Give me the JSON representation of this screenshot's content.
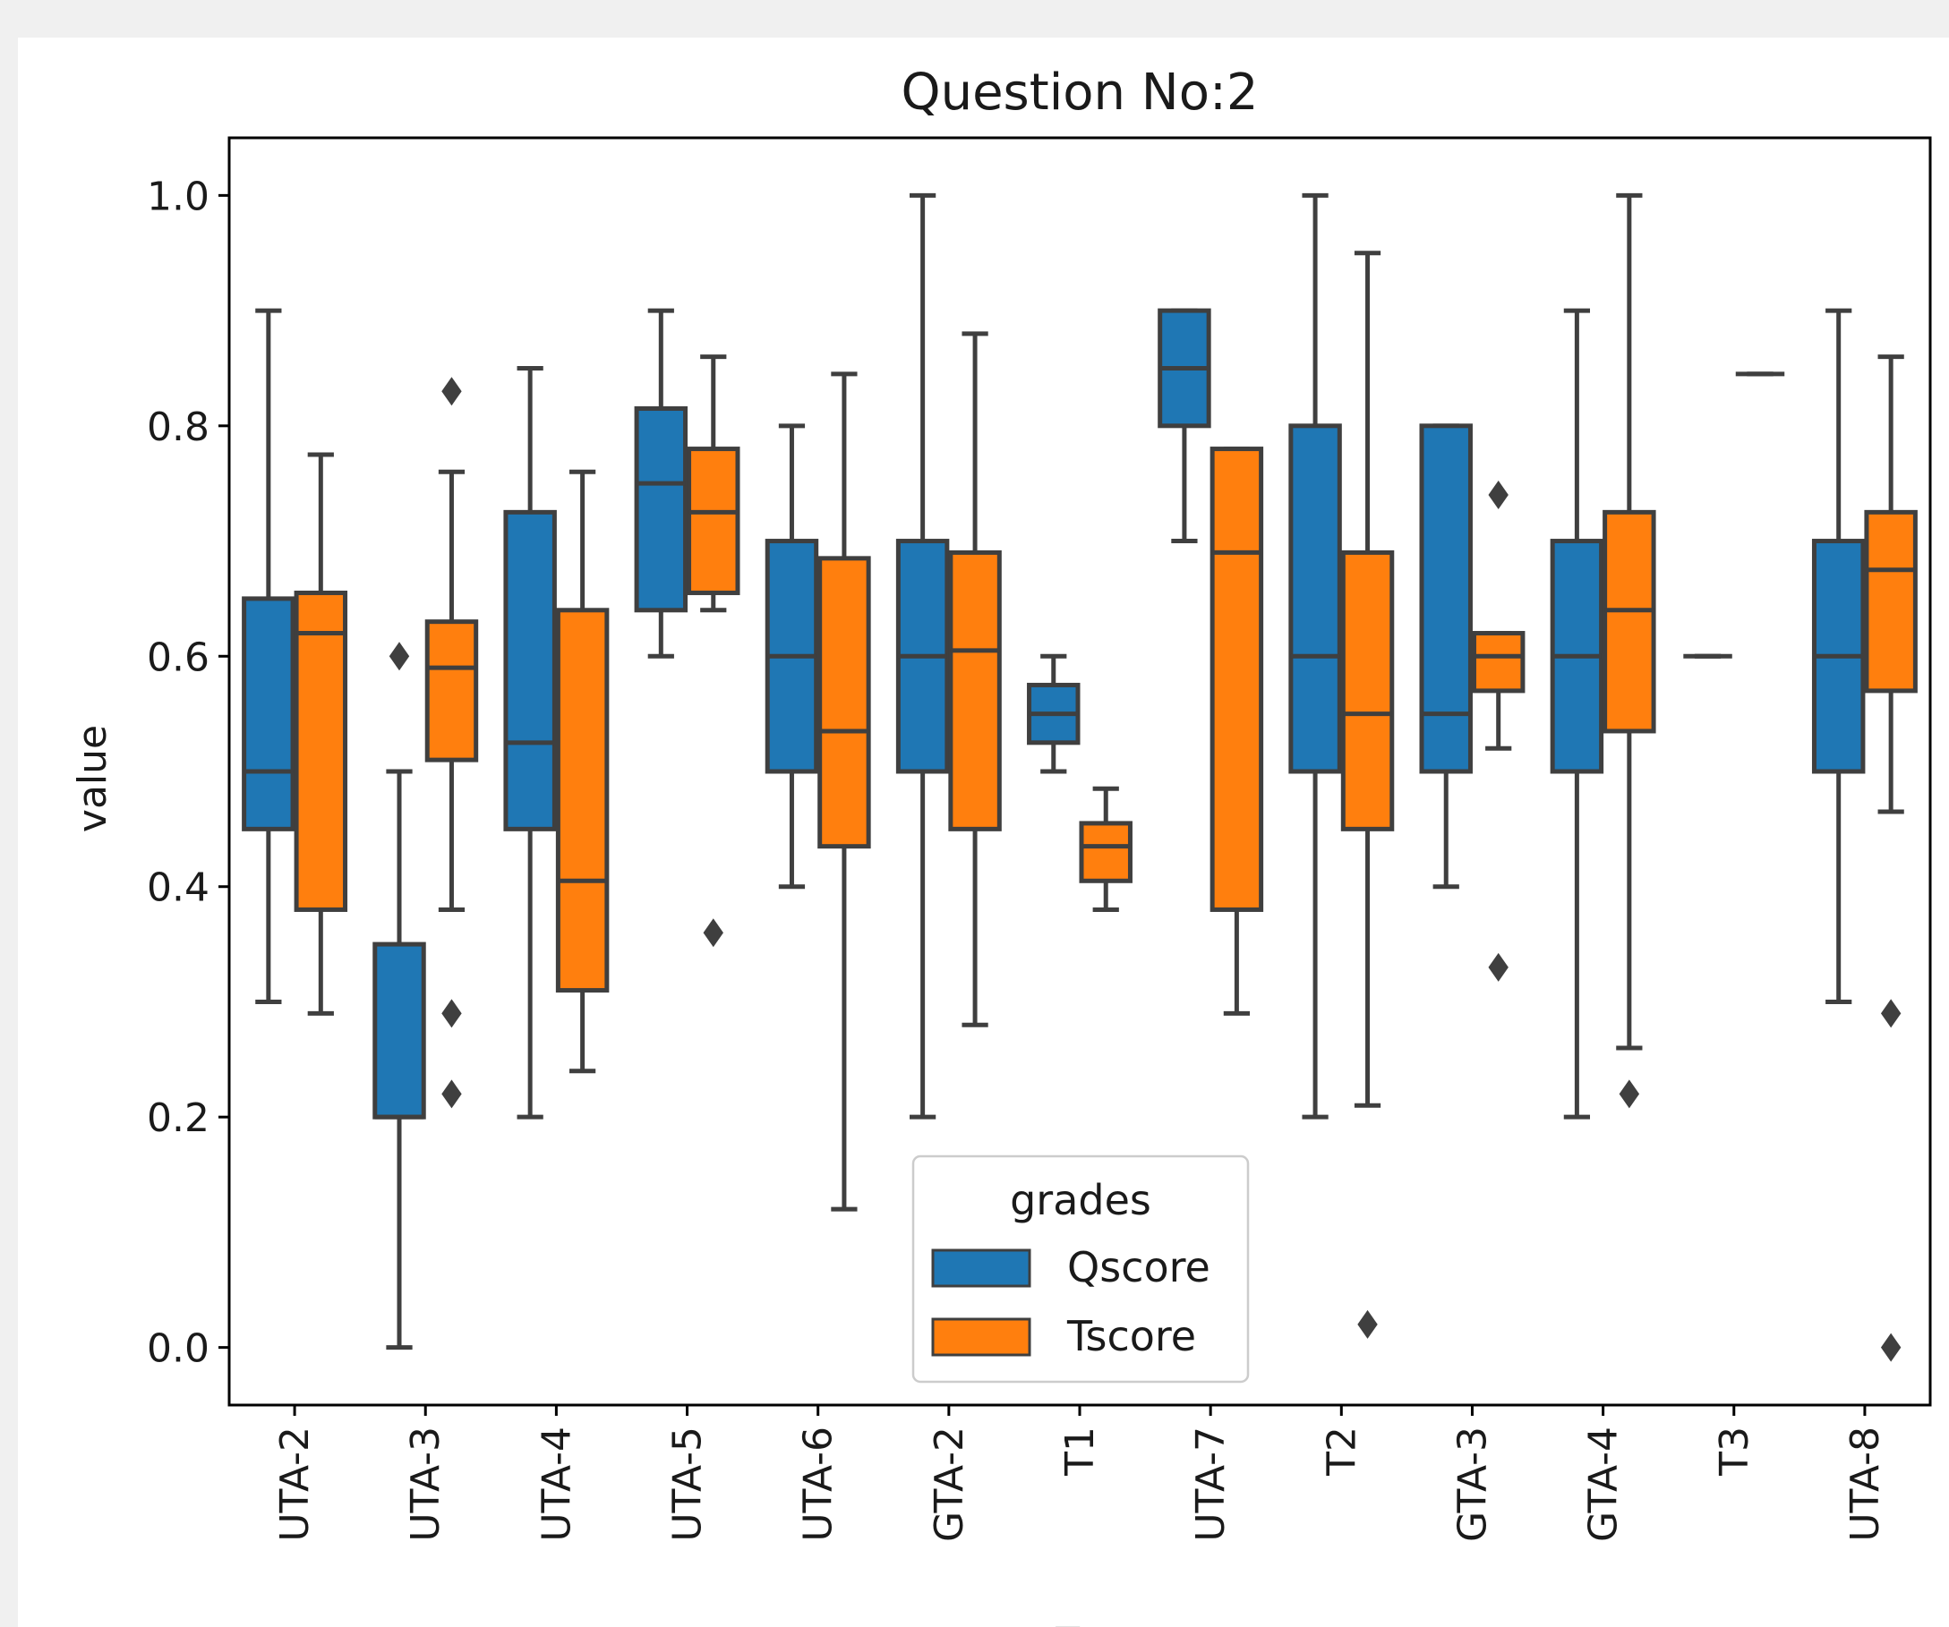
{
  "chart_data": {
    "type": "box",
    "title": "Question No:2",
    "xlabel": "TA",
    "ylabel": "value",
    "ylim": [
      -0.05,
      1.05
    ],
    "yticks": [
      "0.0",
      "0.2",
      "0.4",
      "0.6",
      "0.8",
      "1.0"
    ],
    "categories": [
      "UTA-2",
      "UTA-3",
      "UTA-4",
      "UTA-5",
      "UTA-6",
      "GTA-2",
      "T1",
      "UTA-7",
      "T2",
      "GTA-3",
      "GTA-4",
      "T3",
      "UTA-8"
    ],
    "legend": {
      "title": "grades",
      "position": "lower-center",
      "entries": [
        "Qscore",
        "Tscore"
      ]
    },
    "series": [
      {
        "name": "Qscore",
        "color": "#1f77b4",
        "boxes": [
          {
            "whislo": 0.3,
            "q1": 0.45,
            "med": 0.5,
            "q3": 0.65,
            "whishi": 0.9,
            "fliers": []
          },
          {
            "whislo": 0.0,
            "q1": 0.2,
            "med": 0.2,
            "q3": 0.35,
            "whishi": 0.5,
            "fliers": [
              0.6
            ]
          },
          {
            "whislo": 0.2,
            "q1": 0.45,
            "med": 0.525,
            "q3": 0.725,
            "whishi": 0.85,
            "fliers": []
          },
          {
            "whislo": 0.6,
            "q1": 0.64,
            "med": 0.75,
            "q3": 0.815,
            "whishi": 0.9,
            "fliers": []
          },
          {
            "whislo": 0.4,
            "q1": 0.5,
            "med": 0.6,
            "q3": 0.7,
            "whishi": 0.8,
            "fliers": []
          },
          {
            "whislo": 0.2,
            "q1": 0.5,
            "med": 0.6,
            "q3": 0.7,
            "whishi": 1.0,
            "fliers": []
          },
          {
            "whislo": 0.5,
            "q1": 0.525,
            "med": 0.55,
            "q3": 0.575,
            "whishi": 0.6,
            "fliers": []
          },
          {
            "whislo": 0.7,
            "q1": 0.8,
            "med": 0.85,
            "q3": 0.9,
            "whishi": 0.9,
            "fliers": []
          },
          {
            "whislo": 0.2,
            "q1": 0.5,
            "med": 0.6,
            "q3": 0.8,
            "whishi": 1.0,
            "fliers": []
          },
          {
            "whislo": 0.4,
            "q1": 0.5,
            "med": 0.55,
            "q3": 0.8,
            "whishi": 0.8,
            "fliers": []
          },
          {
            "whislo": 0.2,
            "q1": 0.5,
            "med": 0.6,
            "q3": 0.7,
            "whishi": 0.9,
            "fliers": []
          },
          {
            "whislo": 0.6,
            "q1": 0.6,
            "med": 0.6,
            "q3": 0.6,
            "whishi": 0.6,
            "fliers": []
          },
          {
            "whislo": 0.3,
            "q1": 0.5,
            "med": 0.6,
            "q3": 0.7,
            "whishi": 0.9,
            "fliers": []
          }
        ]
      },
      {
        "name": "Tscore",
        "color": "#ff7f0e",
        "boxes": [
          {
            "whislo": 0.29,
            "q1": 0.38,
            "med": 0.62,
            "q3": 0.655,
            "whishi": 0.775,
            "fliers": []
          },
          {
            "whislo": 0.38,
            "q1": 0.51,
            "med": 0.59,
            "q3": 0.63,
            "whishi": 0.76,
            "fliers": [
              0.83,
              0.29,
              0.22
            ]
          },
          {
            "whislo": 0.24,
            "q1": 0.31,
            "med": 0.405,
            "q3": 0.64,
            "whishi": 0.76,
            "fliers": []
          },
          {
            "whislo": 0.64,
            "q1": 0.655,
            "med": 0.725,
            "q3": 0.78,
            "whishi": 0.86,
            "fliers": [
              0.36
            ]
          },
          {
            "whislo": 0.12,
            "q1": 0.435,
            "med": 0.535,
            "q3": 0.685,
            "whishi": 0.845,
            "fliers": []
          },
          {
            "whislo": 0.28,
            "q1": 0.45,
            "med": 0.605,
            "q3": 0.69,
            "whishi": 0.88,
            "fliers": []
          },
          {
            "whislo": 0.38,
            "q1": 0.405,
            "med": 0.435,
            "q3": 0.455,
            "whishi": 0.485,
            "fliers": []
          },
          {
            "whislo": 0.29,
            "q1": 0.38,
            "med": 0.69,
            "q3": 0.78,
            "whishi": 0.78,
            "fliers": []
          },
          {
            "whislo": 0.21,
            "q1": 0.45,
            "med": 0.55,
            "q3": 0.69,
            "whishi": 0.95,
            "fliers": [
              0.02
            ]
          },
          {
            "whislo": 0.52,
            "q1": 0.57,
            "med": 0.6,
            "q3": 0.62,
            "whishi": 0.62,
            "fliers": [
              0.74,
              0.33
            ]
          },
          {
            "whislo": 0.26,
            "q1": 0.535,
            "med": 0.64,
            "q3": 0.725,
            "whishi": 1.0,
            "fliers": [
              0.22
            ]
          },
          {
            "whislo": 0.845,
            "q1": 0.845,
            "med": 0.845,
            "q3": 0.845,
            "whishi": 0.845,
            "fliers": []
          },
          {
            "whislo": 0.465,
            "q1": 0.57,
            "med": 0.675,
            "q3": 0.725,
            "whishi": 0.86,
            "fliers": [
              0.29,
              0.0
            ]
          }
        ]
      }
    ]
  }
}
